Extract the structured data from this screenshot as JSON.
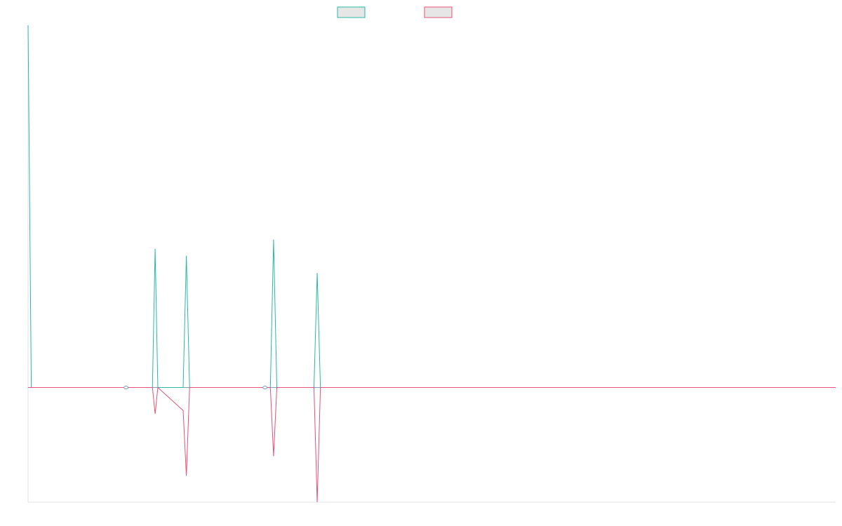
{
  "chart_data": {
    "type": "line",
    "title": "",
    "xlabel": "",
    "ylabel": "",
    "grid": false,
    "legend": "top-center",
    "x": [
      0,
      0.6,
      19.0,
      23.1,
      23.6,
      24.1,
      28.8,
      29.4,
      30.0,
      45.0,
      45.6,
      46.2,
      53.1,
      53.7,
      54.3,
      150.0
    ],
    "xlim": [
      0,
      150
    ],
    "ylim": [
      -100,
      316
    ],
    "series": [
      {
        "color": "#2ab8a6",
        "values": [
          316,
          0,
          0,
          0,
          121,
          0,
          0,
          115,
          0,
          0,
          129,
          0,
          0,
          100,
          0,
          0
        ]
      },
      {
        "color": "#e8507a",
        "values": [
          0,
          0,
          0,
          0,
          -23,
          0,
          -20,
          -77,
          0,
          0,
          -60,
          0,
          0,
          -100,
          0,
          0
        ]
      }
    ],
    "markers": [
      {
        "x": 18.2,
        "y": 0
      },
      {
        "x": 44.0,
        "y": 0
      }
    ],
    "colors": {
      "baseline": "#7d9fb8",
      "legend_fill": "#e6e6e6"
    }
  }
}
